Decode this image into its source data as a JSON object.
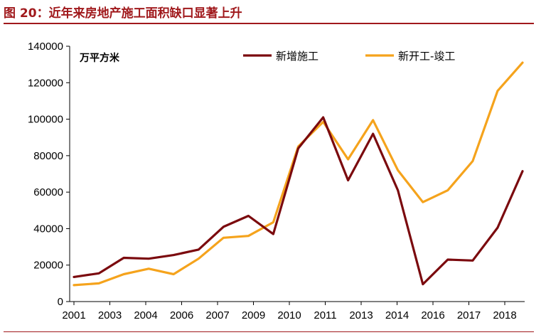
{
  "figure": {
    "title": "图 20：近年来房地产施工面积缺口显著上升"
  },
  "chart_data": {
    "type": "line",
    "unit_label": "万平方米",
    "x_tick_labels": [
      "2001",
      "2003",
      "2004",
      "2006",
      "2007",
      "2009",
      "2010",
      "2011",
      "2013",
      "2014",
      "2016",
      "2017",
      "2018"
    ],
    "y_ticks": [
      0,
      20000,
      40000,
      60000,
      80000,
      100000,
      120000,
      140000
    ],
    "y_tick_labels": [
      "0",
      "20000",
      "40000",
      "60000",
      "80000",
      "100000",
      "120000",
      "140000"
    ],
    "ylim": [
      0,
      140000
    ],
    "grid": false,
    "legend_position": "top-right",
    "series": [
      {
        "name": "新增施工",
        "color": "#7B0A0E",
        "values": [
          13500,
          15500,
          24000,
          23500,
          25500,
          28500,
          41000,
          47000,
          37000,
          84000,
          101000,
          66500,
          92000,
          61000,
          9500,
          23000,
          22500,
          40500,
          71500
        ]
      },
      {
        "name": "新开工-竣工",
        "color": "#F5A31C",
        "values": [
          9000,
          10000,
          15000,
          18000,
          15000,
          23500,
          35000,
          36000,
          43500,
          85000,
          98500,
          78000,
          99500,
          72000,
          54500,
          61000,
          77000,
          115500,
          131000
        ]
      }
    ]
  }
}
